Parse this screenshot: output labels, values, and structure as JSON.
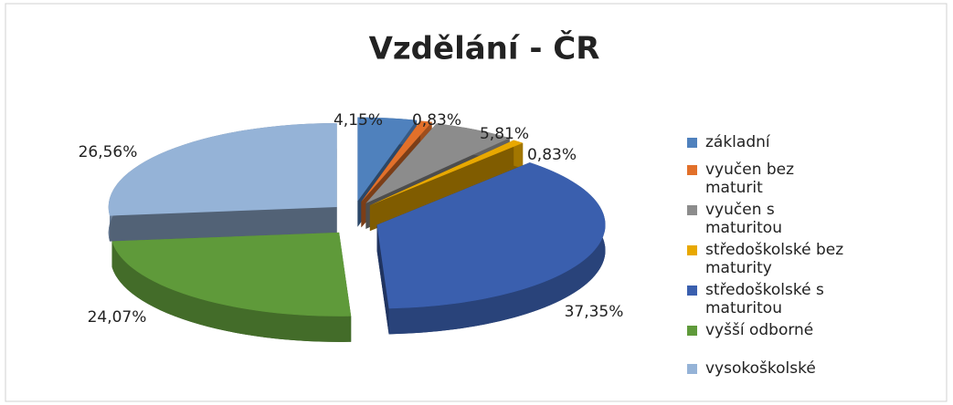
{
  "chart_data": {
    "type": "pie",
    "title": "Vzdělání - ČR",
    "categories": [
      "základní",
      "vyučen bez maturit",
      "vyučen s maturitou",
      "středoškolské bez maturity",
      "středoškolské s maturitou",
      "vyšší odborné",
      "vysokoškolské"
    ],
    "values": [
      4.15,
      0.83,
      5.81,
      0.83,
      37.35,
      24.07,
      26.56
    ],
    "value_labels": [
      "4,15%",
      "0,83%",
      "5,81%",
      "0,83%",
      "37,35%",
      "24,07%",
      "26,56%"
    ],
    "colors": [
      "#4f81bd",
      "#e2702a",
      "#8c8c8c",
      "#e8a800",
      "#3a5fae",
      "#5f9a3a",
      "#95b3d7"
    ],
    "legend": "right"
  }
}
